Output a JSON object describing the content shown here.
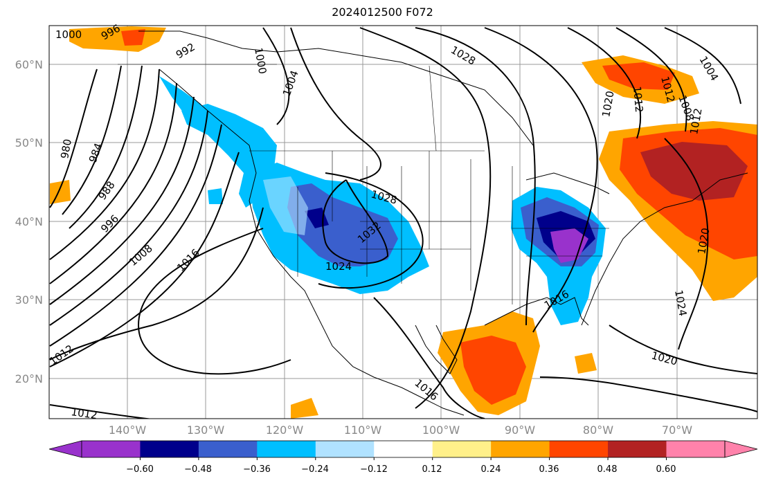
{
  "title": "2024012500 F072",
  "lat_labels": [
    "60°N",
    "50°N",
    "40°N",
    "30°N",
    "20°N"
  ],
  "lon_labels": [
    "140°W",
    "130°W",
    "120°W",
    "110°W",
    "100°W",
    "90°W",
    "80°W",
    "70°W"
  ],
  "colorbar": {
    "ticks": [
      "−0.60",
      "−0.48",
      "−0.36",
      "−0.24",
      "−0.12",
      "0.12",
      "0.24",
      "0.36",
      "0.48",
      "0.60"
    ],
    "colors": [
      "#9932cc",
      "#00008b",
      "#3a5fcd",
      "#00bfff",
      "#b0e2ff",
      "#ffffff",
      "#fff08a",
      "#ffa500",
      "#ff4500",
      "#b22222",
      "#ff82ab"
    ]
  },
  "isobar_labels": [
    "1000",
    "996",
    "992",
    "980",
    "984",
    "988",
    "996",
    "1008",
    "1012",
    "1012",
    "1016",
    "1004",
    "1000",
    "1028",
    "1028",
    "1032",
    "1024",
    "1016",
    "1016",
    "1012",
    "1024",
    "1020",
    "1020",
    "1008",
    "1004",
    "1012",
    "1012",
    "1020"
  ]
}
